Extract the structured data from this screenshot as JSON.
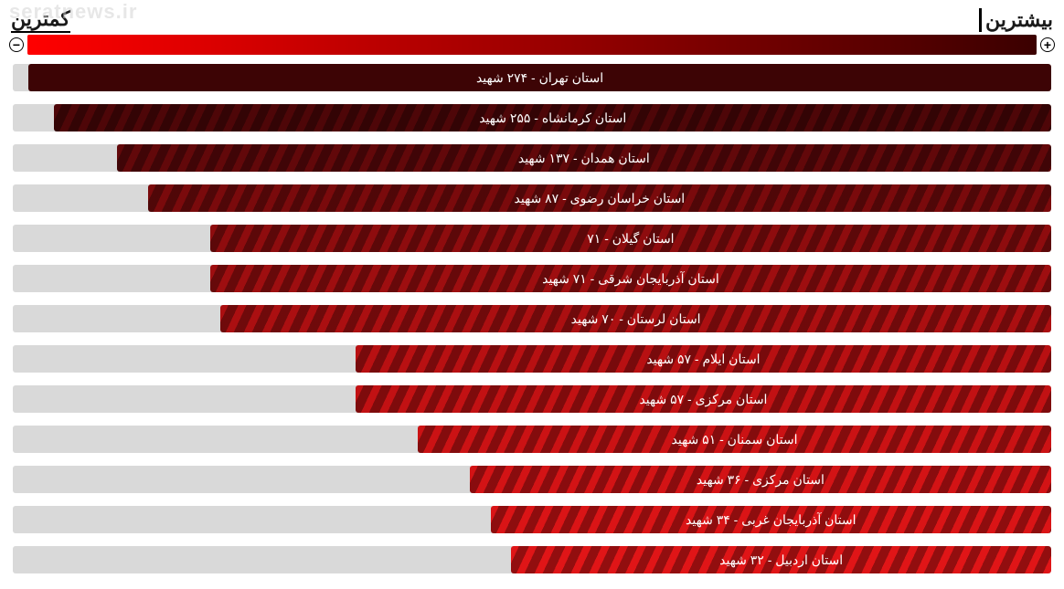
{
  "watermark": "seratnews.ir",
  "header": {
    "most": "بیشترین",
    "least": "کمترین"
  },
  "legend": {
    "plus_icon": "+",
    "minus_icon": "−",
    "gradient_from": "#3b0000",
    "gradient_to": "#ff0000"
  },
  "chart": {
    "track_color": "#d9d9d9",
    "label_color": "#ffffff",
    "label_fontsize": 14,
    "max_value": 274,
    "bars": [
      {
        "label": "استان تهران - ۲۷۴ شهید",
        "value": 274,
        "pct": 98.5,
        "color": "#3d0405",
        "striped": false
      },
      {
        "label": "استان کرمانشاه - ۲۵۵ شهید",
        "value": 255,
        "pct": 96,
        "color": "#4e0608",
        "striped": true
      },
      {
        "label": "استان همدان - ۱۳۷ شهید",
        "value": 137,
        "pct": 90,
        "color": "#62080a",
        "striped": true
      },
      {
        "label": "استان خراسان رضوی - ۸۷ شهید",
        "value": 87,
        "pct": 87,
        "color": "#7a0a0c",
        "striped": true
      },
      {
        "label": "استان گیلان - ۷۱",
        "value": 71,
        "pct": 81,
        "color": "#8e0c0e",
        "striped": true
      },
      {
        "label": "استان آذربایجان شرقی - ۷۱ شهید",
        "value": 71,
        "pct": 81,
        "color": "#9e0e10",
        "striped": true
      },
      {
        "label": "استان لرستان - ۷۰ شهید",
        "value": 70,
        "pct": 80,
        "color": "#ab0f11",
        "striped": true
      },
      {
        "label": "استان ایلام - ۵۷ شهید",
        "value": 57,
        "pct": 67,
        "color": "#b81012",
        "striped": true
      },
      {
        "label": "استان مرکزی - ۵۷ شهید",
        "value": 57,
        "pct": 67,
        "color": "#c21113",
        "striped": true
      },
      {
        "label": "استان سمنان - ۵۱ شهید",
        "value": 51,
        "pct": 61,
        "color": "#cb1214",
        "striped": true
      },
      {
        "label": "استان مرکزی - ۳۶ شهید",
        "value": 36,
        "pct": 56,
        "color": "#d31315",
        "striped": true
      },
      {
        "label": "استان آذربایجان غربی - ۳۴ شهید",
        "value": 34,
        "pct": 54,
        "color": "#da1416",
        "striped": true
      },
      {
        "label": "استان اردبیل - ۳۲ شهید",
        "value": 32,
        "pct": 52,
        "color": "#e01517",
        "striped": true
      }
    ]
  }
}
